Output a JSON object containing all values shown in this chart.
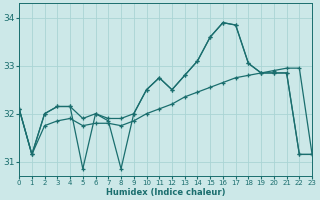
{
  "xlabel": "Humidex (Indice chaleur)",
  "ylabel": "",
  "xlim": [
    0,
    23
  ],
  "ylim": [
    30.7,
    34.3
  ],
  "yticks": [
    31,
    32,
    33,
    34
  ],
  "xticks": [
    0,
    1,
    2,
    3,
    4,
    5,
    6,
    7,
    8,
    9,
    10,
    11,
    12,
    13,
    14,
    15,
    16,
    17,
    18,
    19,
    20,
    21,
    22,
    23
  ],
  "bg_color": "#cce8e8",
  "grid_color": "#aad4d4",
  "line_color": "#1a6e6e",
  "lines": [
    {
      "x": [
        0,
        1,
        2,
        3,
        4,
        5,
        6,
        7,
        8,
        9,
        10,
        11,
        12,
        13,
        14,
        15,
        16,
        17,
        18,
        19,
        20,
        21,
        22,
        23
      ],
      "y": [
        32.1,
        31.15,
        32.0,
        32.15,
        32.15,
        30.85,
        32.0,
        31.85,
        30.85,
        32.0,
        32.5,
        32.75,
        32.5,
        32.8,
        33.1,
        33.6,
        33.9,
        33.85,
        33.05,
        32.85,
        32.85,
        32.85,
        31.15,
        31.15
      ]
    },
    {
      "x": [
        0,
        1,
        2,
        3,
        4,
        5,
        6,
        7,
        8,
        9,
        10,
        11,
        12,
        13,
        14,
        15,
        16,
        17,
        18,
        19,
        20,
        21,
        22,
        23
      ],
      "y": [
        32.1,
        31.15,
        32.0,
        32.15,
        32.15,
        31.9,
        32.0,
        31.9,
        31.9,
        32.0,
        32.5,
        32.75,
        32.5,
        32.8,
        33.1,
        33.6,
        33.9,
        33.85,
        33.05,
        32.85,
        32.85,
        32.85,
        31.15,
        31.15
      ]
    },
    {
      "x": [
        0,
        1,
        2,
        3,
        4,
        5,
        6,
        7,
        8,
        9,
        10,
        11,
        12,
        13,
        14,
        15,
        16,
        17,
        18,
        19,
        20,
        21,
        22,
        23
      ],
      "y": [
        32.1,
        31.15,
        31.75,
        31.85,
        31.9,
        31.75,
        31.8,
        31.8,
        31.75,
        31.85,
        32.0,
        32.1,
        32.2,
        32.35,
        32.45,
        32.55,
        32.65,
        32.75,
        32.8,
        32.85,
        32.9,
        32.95,
        32.95,
        31.15
      ]
    }
  ]
}
